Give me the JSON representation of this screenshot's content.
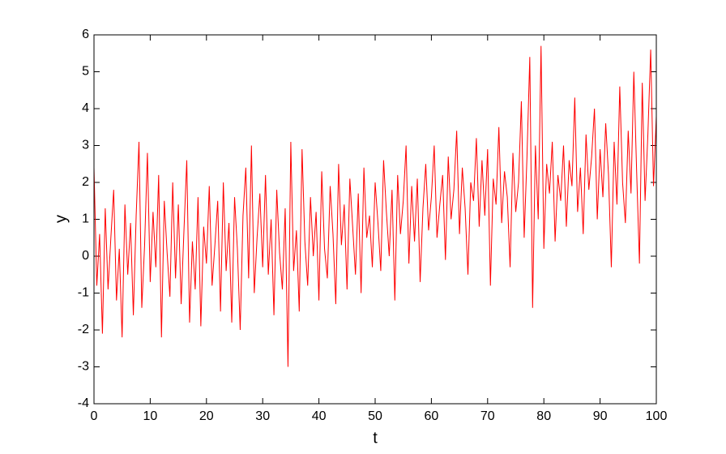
{
  "chart_data": {
    "type": "line",
    "x_label": "t",
    "y_label": "y",
    "x": [
      0,
      0.5,
      1,
      1.5,
      2,
      2.5,
      3,
      3.5,
      4,
      4.5,
      5,
      5.5,
      6,
      6.5,
      7,
      7.5,
      8,
      8.5,
      9,
      9.5,
      10,
      10.5,
      11,
      11.5,
      12,
      12.5,
      13,
      13.5,
      14,
      14.5,
      15,
      15.5,
      16,
      16.5,
      17,
      17.5,
      18,
      18.5,
      19,
      19.5,
      20,
      20.5,
      21,
      21.5,
      22,
      22.5,
      23,
      23.5,
      24,
      24.5,
      25,
      25.5,
      26,
      26.5,
      27,
      27.5,
      28,
      28.5,
      29,
      29.5,
      30,
      30.5,
      31,
      31.5,
      32,
      32.5,
      33,
      33.5,
      34,
      34.5,
      35,
      35.5,
      36,
      36.5,
      37,
      37.5,
      38,
      38.5,
      39,
      39.5,
      40,
      40.5,
      41,
      41.5,
      42,
      42.5,
      43,
      43.5,
      44,
      44.5,
      45,
      45.5,
      46,
      46.5,
      47,
      47.5,
      48,
      48.5,
      49,
      49.5,
      50,
      50.5,
      51,
      51.5,
      52,
      52.5,
      53,
      53.5,
      54,
      54.5,
      55,
      55.5,
      56,
      56.5,
      57,
      57.5,
      58,
      58.5,
      59,
      59.5,
      60,
      60.5,
      61,
      61.5,
      62,
      62.5,
      63,
      63.5,
      64,
      64.5,
      65,
      65.5,
      66,
      66.5,
      67,
      67.5,
      68,
      68.5,
      69,
      69.5,
      70,
      70.5,
      71,
      71.5,
      72,
      72.5,
      73,
      73.5,
      74,
      74.5,
      75,
      75.5,
      76,
      76.5,
      77,
      77.5,
      78,
      78.5,
      79,
      79.5,
      80,
      80.5,
      81,
      81.5,
      82,
      82.5,
      83,
      83.5,
      84,
      84.5,
      85,
      85.5,
      86,
      86.5,
      87,
      87.5,
      88,
      88.5,
      89,
      89.5,
      90,
      90.5,
      91,
      91.5,
      92,
      92.5,
      93,
      93.5,
      94,
      94.5,
      95,
      95.5,
      96,
      96.5,
      97,
      97.5,
      98,
      98.5,
      99,
      99.5,
      100
    ],
    "series": [
      {
        "color": "#ff0000",
        "values": [
          2.4,
          -0.8,
          0.6,
          -2.1,
          1.3,
          -0.9,
          0.5,
          1.8,
          -1.2,
          0.2,
          -2.2,
          1.4,
          -0.5,
          0.9,
          -1.6,
          1.1,
          3.1,
          -1.4,
          0.3,
          2.8,
          -0.7,
          1.2,
          -0.3,
          2.2,
          -2.2,
          1.5,
          0.1,
          -1.1,
          2.0,
          -0.6,
          1.4,
          -1.3,
          0.7,
          2.6,
          -1.8,
          0.4,
          -0.9,
          1.6,
          -1.9,
          0.8,
          -0.2,
          1.9,
          -0.8,
          0.3,
          1.5,
          -1.5,
          2.0,
          -0.4,
          0.9,
          -1.8,
          1.6,
          0.2,
          -2.0,
          1.1,
          2.4,
          -0.6,
          3.0,
          -1.0,
          0.5,
          1.7,
          -0.3,
          2.2,
          -0.5,
          1.0,
          -1.6,
          1.8,
          0.1,
          -0.9,
          1.3,
          -3.0,
          3.1,
          -0.4,
          0.7,
          -1.5,
          2.9,
          0.4,
          -0.8,
          1.6,
          0.0,
          1.2,
          -1.2,
          2.3,
          0.2,
          -0.6,
          1.9,
          0.6,
          -1.3,
          2.5,
          0.3,
          1.4,
          -0.9,
          2.1,
          0.8,
          -0.5,
          1.7,
          -1.0,
          2.4,
          0.5,
          1.1,
          -0.3,
          2.0,
          0.9,
          -0.4,
          2.6,
          1.2,
          0.0,
          1.8,
          -1.2,
          2.2,
          0.6,
          1.5,
          3.0,
          -0.2,
          1.9,
          0.4,
          2.1,
          -0.7,
          1.3,
          2.5,
          0.7,
          1.6,
          3.0,
          0.5,
          1.4,
          2.2,
          -0.1,
          2.7,
          1.0,
          1.8,
          3.4,
          0.6,
          2.4,
          1.3,
          -0.5,
          2.0,
          1.5,
          3.2,
          0.8,
          2.6,
          1.1,
          2.9,
          -0.8,
          2.1,
          1.4,
          3.5,
          0.9,
          2.3,
          1.6,
          -0.3,
          2.8,
          1.2,
          2.0,
          4.2,
          0.5,
          2.7,
          5.4,
          -1.4,
          3.0,
          1.0,
          5.7,
          0.2,
          2.5,
          1.7,
          3.1,
          0.4,
          2.2,
          1.5,
          3.0,
          0.8,
          2.6,
          1.9,
          4.3,
          1.2,
          2.4,
          0.6,
          3.3,
          1.8,
          2.7,
          4.0,
          1.0,
          2.9,
          1.6,
          3.6,
          2.2,
          -0.3,
          3.1,
          1.4,
          4.6,
          2.0,
          0.9,
          3.4,
          1.7,
          5.0,
          2.3,
          -0.2,
          4.7,
          1.5,
          3.3,
          5.6,
          1.9,
          3.8
        ]
      }
    ],
    "xlim": [
      0,
      100
    ],
    "xticks": [
      0,
      10,
      20,
      30,
      40,
      50,
      60,
      70,
      80,
      90,
      100
    ],
    "ylim": [
      -4,
      6
    ],
    "yticks": [
      -4,
      -3,
      -2,
      -1,
      0,
      1,
      2,
      3,
      4,
      5,
      6
    ],
    "grid": false
  }
}
